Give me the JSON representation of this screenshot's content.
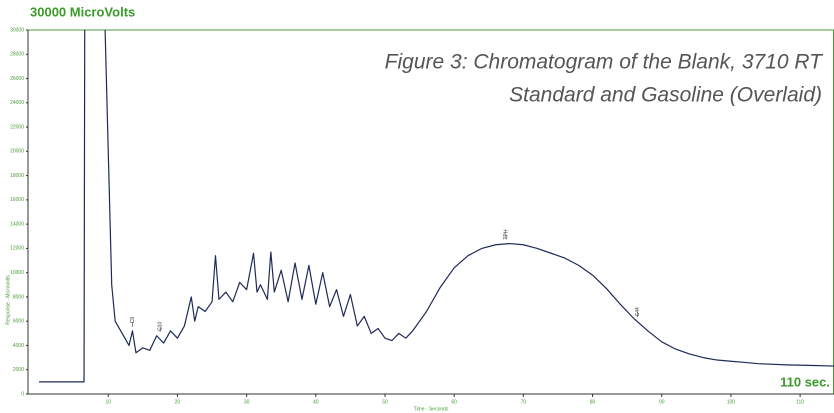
{
  "chart_data": {
    "type": "line",
    "title": [
      "Figure 3: Chromatogram of the Blank, 3710 RT",
      "Standard and Gasoline (Overlaid)"
    ],
    "y_unit_label": "30000 MicroVolts",
    "x_unit_label": "110 sec.",
    "xlabel": "Time - Seconds",
    "ylabel": "Response - Microvolts",
    "x": [
      0,
      6.5,
      6.6,
      7,
      9.5,
      10,
      10.5,
      11,
      12,
      13,
      13.5,
      14,
      15,
      16,
      17,
      18,
      19,
      20,
      21,
      22,
      22.5,
      23,
      24,
      25,
      25.5,
      26,
      27,
      28,
      29,
      30,
      31,
      31.5,
      32,
      33,
      33.5,
      34,
      35,
      36,
      37,
      38,
      39,
      40,
      41,
      42,
      43,
      44,
      45,
      46,
      47,
      48,
      49,
      50,
      51,
      52,
      53,
      54,
      56,
      58,
      60,
      62,
      64,
      66,
      68,
      70,
      72,
      74,
      76,
      78,
      80,
      82,
      84,
      86,
      88,
      90,
      92,
      94,
      96,
      98,
      100,
      102,
      104,
      108,
      112,
      115
    ],
    "series": [
      {
        "color": "#1f2a5a",
        "values": [
          1000,
          1000,
          30500,
          31000,
          31000,
          20000,
          9000,
          6000,
          5000,
          4000,
          5200,
          3400,
          3800,
          3600,
          4800,
          4200,
          5200,
          4600,
          5600,
          8000,
          6000,
          7200,
          6800,
          7600,
          11400,
          7800,
          8400,
          7600,
          9200,
          8600,
          11600,
          8400,
          9000,
          7800,
          11700,
          8400,
          10200,
          7600,
          10800,
          7800,
          10600,
          7400,
          10000,
          7200,
          8600,
          6400,
          8200,
          5600,
          6400,
          5000,
          5400,
          4600,
          4400,
          5000,
          4600,
          5200,
          6800,
          8800,
          10400,
          11400,
          12000,
          12300,
          12400,
          12300,
          12000,
          11600,
          11200,
          10600,
          9800,
          8700,
          7400,
          6200,
          5200,
          4300,
          3700,
          3300,
          3000,
          2800,
          2700,
          2600,
          2500,
          2400,
          2350,
          2300
        ]
      }
    ],
    "annotations": [
      {
        "text": "C9",
        "x": 13.5,
        "y": 5200
      },
      {
        "text": "C10",
        "x": 17.5,
        "y": 4800
      },
      {
        "text": "TPH",
        "x": 67.5,
        "y": 12400
      },
      {
        "text": "C44",
        "x": 86.5,
        "y": 6000
      }
    ],
    "xlim": [
      -1.6,
      114.9
    ],
    "ylim": [
      0,
      30000
    ],
    "xticks": [
      10,
      20,
      30,
      40,
      50,
      60,
      70,
      80,
      90,
      100,
      110
    ],
    "yticks": [
      0,
      2000,
      4000,
      6000,
      8000,
      10000,
      12000,
      14000,
      16000,
      18000,
      20000,
      22000,
      24000,
      26000,
      28000,
      30000
    ],
    "grid": false,
    "frame_color": "#4a9a3a"
  }
}
